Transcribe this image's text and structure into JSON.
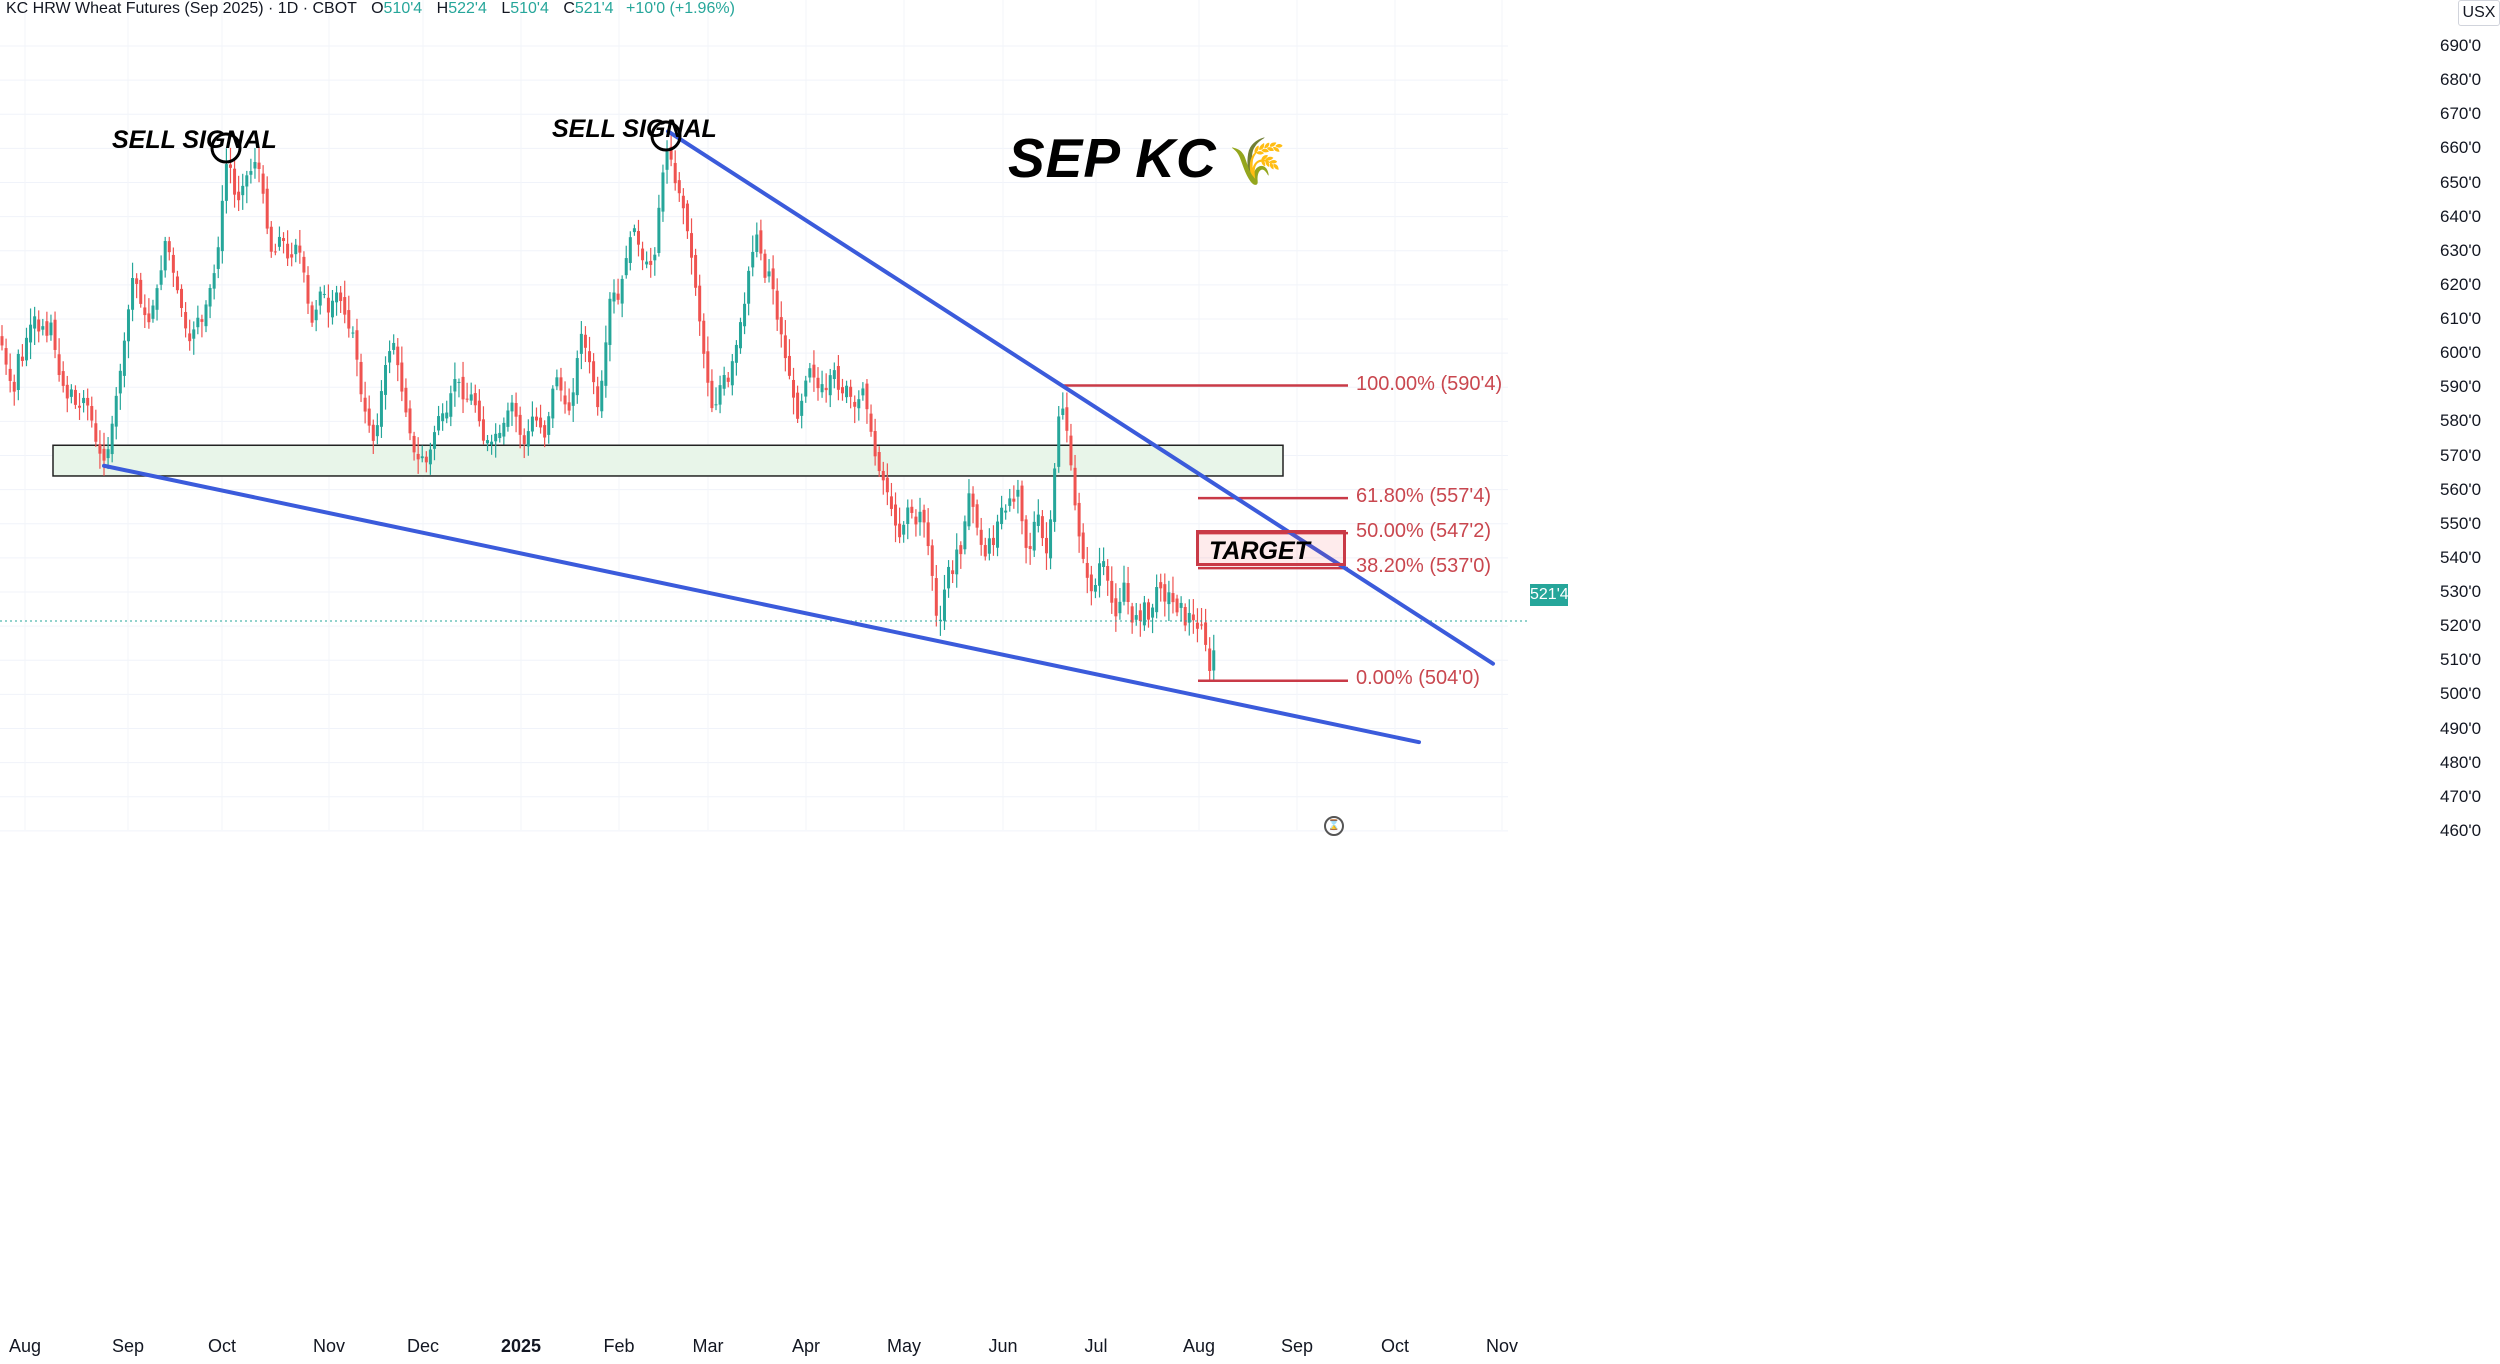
{
  "header": {
    "symbol": "KC HRW Wheat Futures (Sep 2025) · 1D · CBOT",
    "open_label": "O",
    "open": "510'4",
    "high_label": "H",
    "high": "522'4",
    "low_label": "L",
    "low": "510'4",
    "close_label": "C",
    "close": "521'4",
    "change": "+10'0 (+1.96%)"
  },
  "currency": "USX",
  "title": "SEP KC",
  "title_icon": "🌾",
  "annotations": {
    "sell_1": "SELL SIGNAL",
    "sell_2": "SELL SIGNAL",
    "target": "TARGET"
  },
  "last_price": "521'4",
  "fib_levels": {
    "l100": "100.00% (590'4)",
    "l618": "61.80% (557'4)",
    "l50": "50.00% (547'2)",
    "l382": "38.20% (537'0)",
    "l0": "0.00% (504'0)"
  },
  "colors": {
    "up": "#26a69a",
    "down": "#ef5350",
    "trend": "#3b5bdb",
    "fib": "#c93a47",
    "support_fill": "#e8f5e9"
  },
  "chart_data": {
    "type": "candlestick",
    "title": "KC HRW Wheat Futures (Sep 2025) 1D",
    "ylabel": "USX",
    "ylim": [
      455,
      695
    ],
    "y_ticks": [
      "690'0",
      "680'0",
      "670'0",
      "660'0",
      "650'0",
      "640'0",
      "630'0",
      "620'0",
      "610'0",
      "600'0",
      "590'0",
      "580'0",
      "570'0",
      "560'0",
      "550'0",
      "540'0",
      "530'0",
      "520'0",
      "510'0",
      "500'0",
      "490'0",
      "480'0",
      "470'0",
      "460'0"
    ],
    "x_ticks": [
      "Aug",
      "Sep",
      "Oct",
      "Nov",
      "Dec",
      "2025",
      "Feb",
      "Mar",
      "Apr",
      "May",
      "Jun",
      "Jul",
      "Aug",
      "Sep",
      "Oct",
      "Nov"
    ],
    "close_path": [
      [
        0,
        605
      ],
      [
        8,
        594
      ],
      [
        14,
        588
      ],
      [
        18,
        600
      ],
      [
        22,
        597
      ],
      [
        26,
        604
      ],
      [
        30,
        608
      ],
      [
        35,
        611
      ],
      [
        39,
        606
      ],
      [
        43,
        608
      ],
      [
        47,
        605
      ],
      [
        51,
        609
      ],
      [
        55,
        601
      ],
      [
        60,
        592
      ],
      [
        64,
        590
      ],
      [
        68,
        586
      ],
      [
        72,
        590
      ],
      [
        76,
        584
      ],
      [
        80,
        584
      ],
      [
        85,
        588
      ],
      [
        89,
        583
      ],
      [
        93,
        579
      ],
      [
        97,
        572
      ],
      [
        101,
        570
      ],
      [
        105,
        568
      ],
      [
        109,
        573
      ],
      [
        113,
        581
      ],
      [
        117,
        589
      ],
      [
        121,
        596
      ],
      [
        125,
        605
      ],
      [
        129,
        614
      ],
      [
        133,
        623
      ],
      [
        137,
        620
      ],
      [
        141,
        614
      ],
      [
        145,
        611
      ],
      [
        149,
        609
      ],
      [
        153,
        614
      ],
      [
        157,
        619
      ],
      [
        161,
        624
      ],
      [
        165,
        633
      ],
      [
        169,
        630
      ],
      [
        173,
        624
      ],
      [
        177,
        619
      ],
      [
        181,
        614
      ],
      [
        185,
        608
      ],
      [
        189,
        603
      ],
      [
        193,
        606
      ],
      [
        197,
        611
      ],
      [
        201,
        608
      ],
      [
        205,
        613
      ],
      [
        209,
        618
      ],
      [
        213,
        622
      ],
      [
        217,
        627
      ],
      [
        221,
        640
      ],
      [
        225,
        654
      ],
      [
        229,
        658
      ],
      [
        233,
        648
      ],
      [
        237,
        644
      ],
      [
        241,
        646
      ],
      [
        245,
        653
      ],
      [
        249,
        651
      ],
      [
        253,
        656
      ],
      [
        257,
        656
      ],
      [
        261,
        652
      ],
      [
        265,
        642
      ],
      [
        269,
        632
      ],
      [
        273,
        628
      ],
      [
        277,
        631
      ],
      [
        281,
        636
      ],
      [
        285,
        631
      ],
      [
        289,
        626
      ],
      [
        293,
        629
      ],
      [
        297,
        633
      ],
      [
        301,
        628
      ],
      [
        305,
        622
      ],
      [
        309,
        612
      ],
      [
        313,
        608
      ],
      [
        317,
        614
      ],
      [
        321,
        619
      ],
      [
        325,
        617
      ],
      [
        329,
        611
      ],
      [
        333,
        616
      ],
      [
        337,
        618
      ],
      [
        341,
        615
      ],
      [
        345,
        611
      ],
      [
        349,
        607
      ],
      [
        353,
        606
      ],
      [
        357,
        598
      ],
      [
        361,
        588
      ],
      [
        365,
        583
      ],
      [
        369,
        579
      ],
      [
        373,
        574
      ],
      [
        377,
        578
      ],
      [
        381,
        588
      ],
      [
        385,
        596
      ],
      [
        389,
        600
      ],
      [
        393,
        604
      ],
      [
        397,
        598
      ],
      [
        401,
        590
      ],
      [
        405,
        584
      ],
      [
        409,
        578
      ],
      [
        413,
        572
      ],
      [
        417,
        568
      ],
      [
        421,
        571
      ],
      [
        425,
        567
      ],
      [
        429,
        570
      ],
      [
        433,
        575
      ],
      [
        437,
        580
      ],
      [
        441,
        584
      ],
      [
        445,
        580
      ],
      [
        449,
        586
      ],
      [
        453,
        591
      ],
      [
        457,
        594
      ],
      [
        461,
        589
      ],
      [
        465,
        584
      ],
      [
        469,
        589
      ],
      [
        473,
        587
      ],
      [
        477,
        583
      ],
      [
        481,
        578
      ],
      [
        485,
        572
      ],
      [
        489,
        576
      ],
      [
        493,
        573
      ],
      [
        497,
        578
      ],
      [
        501,
        576
      ],
      [
        505,
        581
      ],
      [
        509,
        584
      ],
      [
        513,
        586
      ],
      [
        517,
        580
      ],
      [
        521,
        575
      ],
      [
        525,
        573
      ],
      [
        529,
        578
      ],
      [
        533,
        582
      ],
      [
        537,
        580
      ],
      [
        541,
        578
      ],
      [
        545,
        575
      ],
      [
        549,
        582
      ],
      [
        553,
        590
      ],
      [
        557,
        593
      ],
      [
        561,
        589
      ],
      [
        565,
        585
      ],
      [
        569,
        583
      ],
      [
        573,
        588
      ],
      [
        577,
        598
      ],
      [
        581,
        606
      ],
      [
        585,
        602
      ],
      [
        589,
        598
      ],
      [
        593,
        593
      ],
      [
        597,
        583
      ],
      [
        601,
        590
      ],
      [
        605,
        600
      ],
      [
        609,
        615
      ],
      [
        613,
        619
      ],
      [
        617,
        614
      ],
      [
        621,
        620
      ],
      [
        625,
        626
      ],
      [
        629,
        632
      ],
      [
        633,
        638
      ],
      [
        637,
        634
      ],
      [
        641,
        628
      ],
      [
        645,
        626
      ],
      [
        649,
        628
      ],
      [
        653,
        623
      ],
      [
        657,
        636
      ],
      [
        661,
        650
      ],
      [
        665,
        656
      ],
      [
        669,
        662
      ],
      [
        673,
        652
      ],
      [
        677,
        648
      ],
      [
        681,
        646
      ],
      [
        685,
        640
      ],
      [
        689,
        633
      ],
      [
        693,
        625
      ],
      [
        697,
        616
      ],
      [
        701,
        606
      ],
      [
        705,
        597
      ],
      [
        709,
        589
      ],
      [
        713,
        582
      ],
      [
        717,
        586
      ],
      [
        721,
        592
      ],
      [
        725,
        594
      ],
      [
        729,
        591
      ],
      [
        733,
        599
      ],
      [
        737,
        603
      ],
      [
        741,
        610
      ],
      [
        745,
        615
      ],
      [
        749,
        625
      ],
      [
        753,
        630
      ],
      [
        757,
        635
      ],
      [
        761,
        629
      ],
      [
        765,
        622
      ],
      [
        769,
        624
      ],
      [
        773,
        619
      ],
      [
        777,
        610
      ],
      [
        781,
        606
      ],
      [
        785,
        599
      ],
      [
        789,
        594
      ],
      [
        793,
        588
      ],
      [
        797,
        580
      ],
      [
        801,
        585
      ],
      [
        805,
        591
      ],
      [
        809,
        596
      ],
      [
        813,
        594
      ],
      [
        817,
        589
      ],
      [
        821,
        592
      ],
      [
        825,
        588
      ],
      [
        829,
        592
      ],
      [
        833,
        597
      ],
      [
        837,
        591
      ],
      [
        841,
        586
      ],
      [
        845,
        592
      ],
      [
        849,
        588
      ],
      [
        853,
        586
      ],
      [
        857,
        582
      ],
      [
        861,
        592
      ],
      [
        865,
        587
      ],
      [
        869,
        580
      ],
      [
        873,
        574
      ],
      [
        877,
        566
      ],
      [
        881,
        565
      ],
      [
        885,
        561
      ],
      [
        889,
        558
      ],
      [
        893,
        552
      ],
      [
        897,
        548
      ],
      [
        901,
        545
      ],
      [
        905,
        552
      ],
      [
        909,
        556
      ],
      [
        913,
        552
      ],
      [
        917,
        549
      ],
      [
        921,
        555
      ],
      [
        925,
        549
      ],
      [
        929,
        542
      ],
      [
        933,
        533
      ],
      [
        937,
        521
      ],
      [
        941,
        522
      ],
      [
        945,
        532
      ],
      [
        949,
        538
      ],
      [
        953,
        535
      ],
      [
        957,
        543
      ],
      [
        961,
        541
      ],
      [
        965,
        551
      ],
      [
        969,
        559
      ],
      [
        973,
        555
      ],
      [
        977,
        549
      ],
      [
        981,
        544
      ],
      [
        985,
        540
      ],
      [
        989,
        546
      ],
      [
        993,
        543
      ],
      [
        997,
        550
      ],
      [
        1001,
        555
      ],
      [
        1005,
        553
      ],
      [
        1009,
        558
      ],
      [
        1013,
        555
      ],
      [
        1017,
        562
      ],
      [
        1021,
        553
      ],
      [
        1025,
        544
      ],
      [
        1029,
        540
      ],
      [
        1033,
        549
      ],
      [
        1037,
        554
      ],
      [
        1041,
        550
      ],
      [
        1045,
        538
      ],
      [
        1049,
        547
      ],
      [
        1053,
        558
      ],
      [
        1057,
        578
      ],
      [
        1061,
        586
      ],
      [
        1065,
        581
      ],
      [
        1069,
        573
      ],
      [
        1073,
        561
      ],
      [
        1077,
        550
      ],
      [
        1081,
        543
      ],
      [
        1085,
        537
      ],
      [
        1089,
        532
      ],
      [
        1093,
        529
      ],
      [
        1097,
        534
      ],
      [
        1101,
        541
      ],
      [
        1105,
        538
      ],
      [
        1109,
        531
      ],
      [
        1113,
        525
      ],
      [
        1117,
        522
      ],
      [
        1121,
        529
      ],
      [
        1125,
        534
      ],
      [
        1129,
        525
      ],
      [
        1133,
        520
      ],
      [
        1137,
        524
      ],
      [
        1141,
        521
      ],
      [
        1145,
        528
      ],
      [
        1149,
        521
      ],
      [
        1153,
        526
      ],
      [
        1157,
        532
      ],
      [
        1161,
        531
      ],
      [
        1165,
        527
      ],
      [
        1169,
        530
      ],
      [
        1173,
        527
      ],
      [
        1177,
        524
      ],
      [
        1181,
        527
      ],
      [
        1185,
        520
      ],
      [
        1189,
        524
      ],
      [
        1193,
        522
      ],
      [
        1197,
        519
      ],
      [
        1201,
        521
      ],
      [
        1205,
        516
      ],
      [
        1209,
        506
      ],
      [
        1213,
        511
      ],
      [
        1217,
        521
      ]
    ],
    "support_zone": {
      "from": 564,
      "to": 573
    },
    "trendlines": [
      {
        "name": "upper",
        "from": [
          668,
          665
        ],
        "to": [
          1493,
          509
        ]
      },
      {
        "name": "lower",
        "from": [
          104,
          567
        ],
        "to": [
          1419,
          486
        ]
      }
    ],
    "fib_retracement": {
      "high": 590.5,
      "low": 504,
      "levels": [
        [
          "100.00%",
          590.5
        ],
        [
          "61.80%",
          557.5
        ],
        [
          "50.00%",
          547.25
        ],
        [
          "38.20%",
          537.0
        ],
        [
          "0.00%",
          504.0
        ]
      ]
    },
    "legend": "none"
  }
}
